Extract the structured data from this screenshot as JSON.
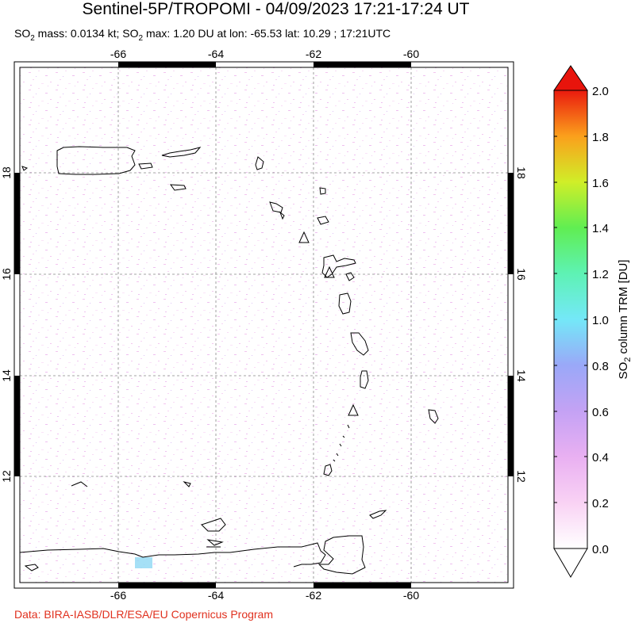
{
  "title": "Sentinel-5P/TROPOMI - 04/09/2023 17:21-17:24 UT",
  "subtitle": {
    "prefix": "SO",
    "sub1": "2",
    "mass_text": " mass: 0.0134 kt; SO",
    "sub2": "2",
    "rest": " max: 1.20 DU at lon: -65.53 lat: 10.29 ; 17:21UTC"
  },
  "map": {
    "lon_ticks": [
      "-66",
      "-64",
      "-62",
      "-60"
    ],
    "lat_ticks": [
      "18",
      "16",
      "14",
      "12"
    ],
    "lon_range": [
      -67.95,
      -57.95
    ],
    "lat_range": [
      9.6,
      19.9
    ]
  },
  "colorbar": {
    "label_prefix": "SO",
    "label_sub": "2",
    "label_rest": " column TRM [DU]",
    "ticks": [
      "2.0",
      "1.8",
      "1.6",
      "1.4",
      "1.2",
      "1.0",
      "0.8",
      "0.6",
      "0.4",
      "0.2",
      "0.0"
    ],
    "min": 0.0,
    "max": 2.0,
    "colors": [
      "#ffffff",
      "#f9c8f2",
      "#e3a6f0",
      "#b9a4f5",
      "#8fb0f8",
      "#6fe0f6",
      "#5df5c0",
      "#68f05a",
      "#d8f02a",
      "#fbc81e",
      "#f96a14",
      "#e8160c"
    ]
  },
  "credit": "Data: BIRA-IASB/DLR/ESA/EU Copernicus Program"
}
